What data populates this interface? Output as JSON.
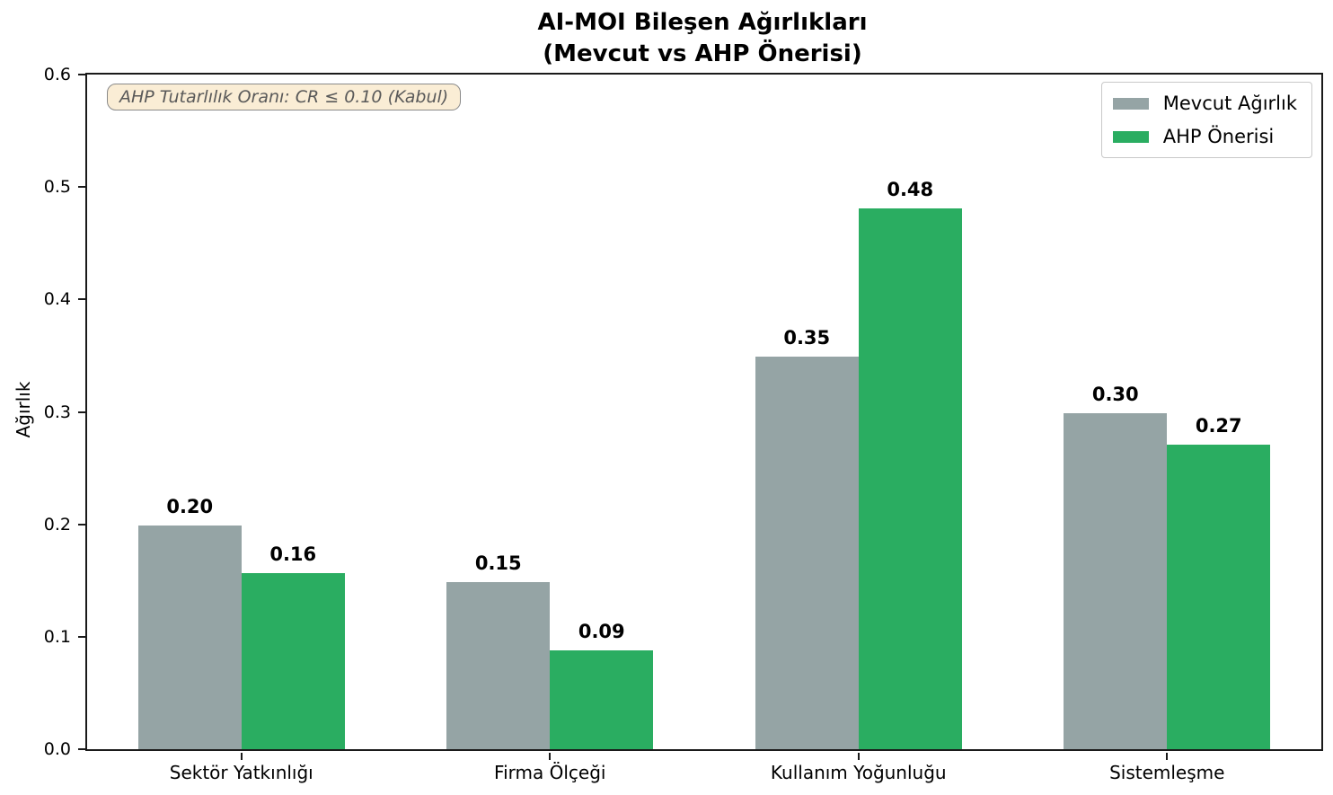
{
  "chart_data": {
    "type": "bar",
    "title_lines": [
      "AI-MOI Bileşen Ağırlıkları",
      "(Mevcut vs AHP Önerisi)"
    ],
    "categories": [
      "Sektör Yatkınlığı",
      "Firma Ölçeği",
      "Kullanım Yoğunluğu",
      "Sistemleşme"
    ],
    "series": [
      {
        "name": "Mevcut Ağırlık",
        "color": "#95a4a5",
        "values": [
          0.199,
          0.149,
          0.349,
          0.299
        ],
        "value_labels": [
          "0.20",
          "0.15",
          "0.35",
          "0.30"
        ]
      },
      {
        "name": "AHP Önerisi",
        "color": "#2aad61",
        "values": [
          0.157,
          0.088,
          0.481,
          0.271
        ],
        "value_labels": [
          "0.16",
          "0.09",
          "0.48",
          "0.27"
        ]
      }
    ],
    "xlabel": "",
    "ylabel": "Ağırlık",
    "ylim": [
      0,
      0.6
    ],
    "yticks": [
      "0.0",
      "0.1",
      "0.2",
      "0.3",
      "0.4",
      "0.5",
      "0.6"
    ],
    "annotation": "AHP Tutarlılık Oranı: CR ≤ 0.10 (Kabul)",
    "legend_position": "upper right",
    "grid": false
  },
  "colors": {
    "axis": "#1a1a1a",
    "annotation_bg": "rgba(245,222,179,0.55)",
    "annotation_border": "#8a8a8a",
    "annotation_text": "#595959",
    "bar_gray": "#95a4a5",
    "bar_green": "#2aad61"
  }
}
